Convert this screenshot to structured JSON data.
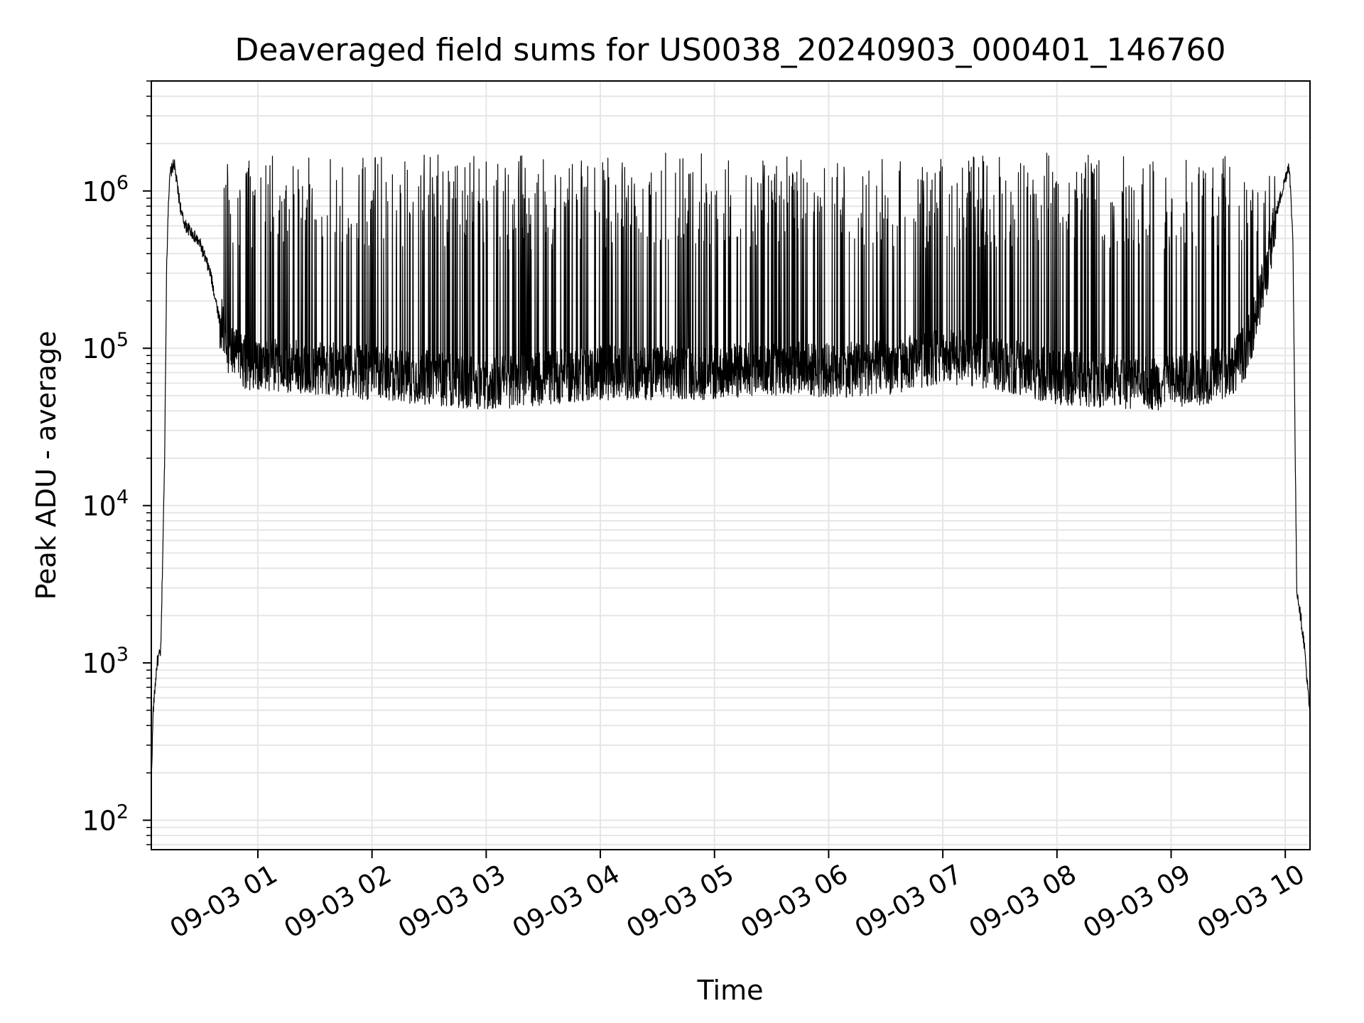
{
  "chart_data": {
    "type": "line",
    "title": "Deaveraged field sums for US0038_20240903_000401_146760",
    "xlabel": "Time",
    "ylabel": "Peak ADU - average",
    "yscale": "log",
    "xlim": [
      "2024-09-03 00:04",
      "2024-09-03 10:13"
    ],
    "ylim": [
      65,
      5000000
    ],
    "grid": true,
    "line_color": "#000000",
    "grid_color": "#e6e6e6",
    "x_ticks": [
      "09-03 01",
      "09-03 02",
      "09-03 03",
      "09-03 04",
      "09-03 05",
      "09-03 06",
      "09-03 07",
      "09-03 08",
      "09-03 09",
      "09-03 10"
    ],
    "y_ticks": [
      {
        "base": "10",
        "exp": "2"
      },
      {
        "base": "10",
        "exp": "3"
      },
      {
        "base": "10",
        "exp": "4"
      },
      {
        "base": "10",
        "exp": "5"
      },
      {
        "base": "10",
        "exp": "6"
      }
    ],
    "series": [
      {
        "x": [
          "2024-09-03 00:04",
          "2024-09-03 00:05",
          "2024-09-03 00:07",
          "2024-09-03 00:09",
          "2024-09-03 00:11",
          "2024-09-03 00:12",
          "2024-09-03 00:13",
          "2024-09-03 00:14",
          "2024-09-03 00:16",
          "2024-09-03 00:18",
          "2024-09-03 00:20",
          "2024-09-03 00:22",
          "2024-09-03 00:25",
          "2024-09-03 00:30",
          "2024-09-03 00:35",
          "2024-09-03 00:40",
          "2024-09-03 00:45",
          "2024-09-03 00:50",
          "2024-09-03 00:55",
          "2024-09-03 01:00",
          "2024-09-03 01:30",
          "2024-09-03 02:00",
          "2024-09-03 02:30",
          "2024-09-03 03:00",
          "2024-09-03 03:30",
          "2024-09-03 04:00",
          "2024-09-03 04:30",
          "2024-09-03 05:00",
          "2024-09-03 05:30",
          "2024-09-03 06:00",
          "2024-09-03 06:30",
          "2024-09-03 07:00",
          "2024-09-03 07:30",
          "2024-09-03 08:00",
          "2024-09-03 08:30",
          "2024-09-03 09:00",
          "2024-09-03 09:30",
          "2024-09-03 09:40",
          "2024-09-03 09:50",
          "2024-09-03 09:55",
          "2024-09-03 10:00",
          "2024-09-03 10:02",
          "2024-09-03 10:04",
          "2024-09-03 10:06",
          "2024-09-03 10:08",
          "2024-09-03 10:10",
          "2024-09-03 10:13"
        ],
        "y": [
          180,
          500,
          1000,
          1200,
          20000,
          300000,
          900000,
          1300000,
          1500000,
          1000000,
          700000,
          600000,
          550000,
          450000,
          300000,
          150000,
          100000,
          85000,
          80000,
          80000,
          75000,
          70000,
          65000,
          60000,
          65000,
          70000,
          70000,
          70000,
          75000,
          72000,
          75000,
          90000,
          80000,
          65000,
          62000,
          60000,
          70000,
          100000,
          300000,
          700000,
          1200000,
          1500000,
          500000,
          3000,
          2000,
          1300,
          450
        ],
        "upper_envelope": [
          1700000,
          1750000,
          1700000,
          1680000,
          1700000,
          1750000,
          1720000,
          1700000,
          1700000,
          1750000,
          1700000,
          1720000
        ]
      }
    ]
  }
}
